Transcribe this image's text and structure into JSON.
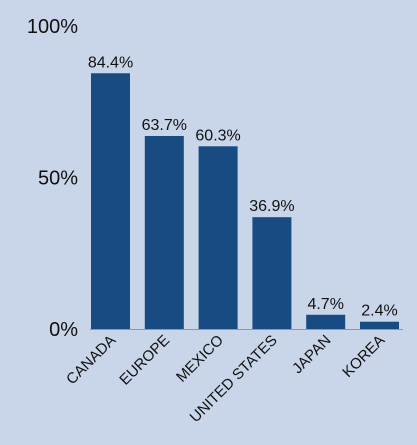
{
  "chart_data": {
    "type": "bar",
    "categories": [
      "CANADA",
      "EUROPE",
      "MEXICO",
      "UNITED STATES",
      "JAPAN",
      "KOREA"
    ],
    "values": [
      84.4,
      63.7,
      60.3,
      36.9,
      4.7,
      2.4
    ],
    "value_labels": [
      "84.4%",
      "63.7%",
      "60.3%",
      "36.9%",
      "4.7%",
      "2.4%"
    ],
    "y_ticks": [
      {
        "value": 0,
        "label": "0%"
      },
      {
        "value": 50,
        "label": "50%"
      },
      {
        "value": 100,
        "label": "100%"
      }
    ],
    "ylim": [
      0,
      100
    ],
    "grid": false,
    "colors": {
      "background": "#c9d5e8",
      "bar": "#174b82",
      "axis_line": "#7f99bf"
    }
  }
}
